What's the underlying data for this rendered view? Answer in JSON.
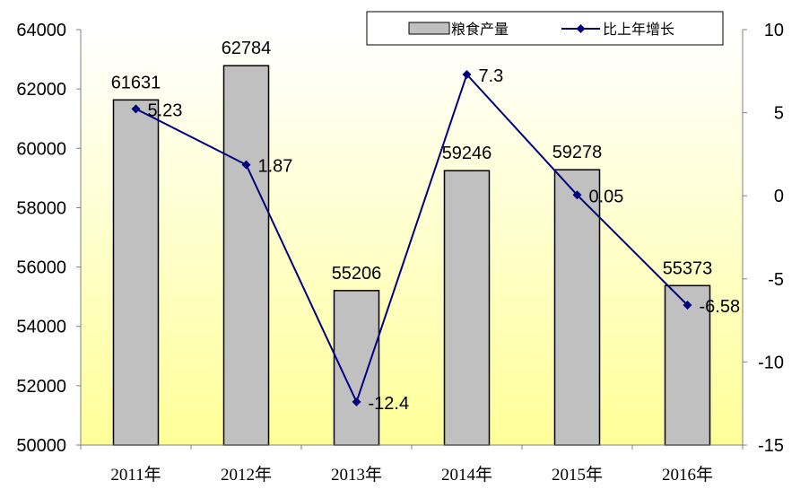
{
  "chart_data": {
    "type": "bar+line",
    "categories": [
      "2011年",
      "2012年",
      "2013年",
      "2014年",
      "2015年",
      "2016年"
    ],
    "series": [
      {
        "name": "粮食产量",
        "type": "bar",
        "axis": "left",
        "values": [
          61631,
          62784,
          55206,
          59246,
          59278,
          55373
        ],
        "labels": [
          "61631",
          "62784",
          "55206",
          "59246",
          "59278",
          "55373"
        ]
      },
      {
        "name": "比上年增长",
        "type": "line",
        "axis": "right",
        "values": [
          5.23,
          1.87,
          -12.4,
          7.3,
          0.05,
          -6.58
        ],
        "labels": [
          "5.23",
          "1.87",
          "-12.4",
          "7.3",
          "0.05",
          "-6.58"
        ]
      }
    ],
    "y_left": {
      "min": 50000,
      "max": 64000,
      "ticks": [
        "50000",
        "52000",
        "54000",
        "56000",
        "58000",
        "60000",
        "62000",
        "64000"
      ]
    },
    "y_right": {
      "min": -15,
      "max": 10,
      "ticks": [
        "-15",
        "-10",
        "-5",
        "0",
        "5",
        "10"
      ]
    },
    "legend": {
      "position": "top-right",
      "bar_label": "粮食产量",
      "line_label": "比上年增长"
    },
    "grid": false,
    "colors": {
      "bar_fill": "#c0c0c0",
      "bar_stroke": "#000000",
      "line": "#000080",
      "background_top": "#ffffff",
      "background_bottom": "#ffff99"
    }
  }
}
